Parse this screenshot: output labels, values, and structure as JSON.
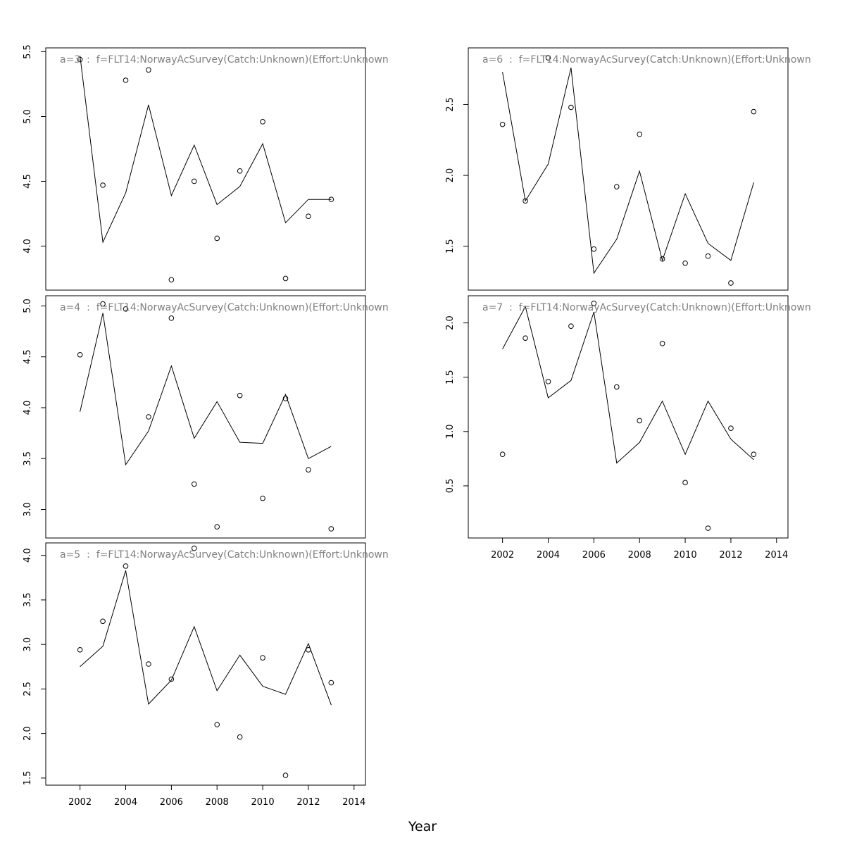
{
  "xlabel": "Year",
  "chart_data": [
    {
      "type": "line",
      "title": "a=3  :  f=FLT14:NorwayAcSurvey(Catch:Unknown)(Effort:Unknown",
      "xlim": [
        2000.5,
        2014.5
      ],
      "ylim": [
        3.66,
        5.53
      ],
      "xticks": [
        2002,
        2004,
        2006,
        2008,
        2010,
        2012,
        2014
      ],
      "yticks": [
        4.0,
        4.5,
        5.0,
        5.5
      ],
      "show_x_axis": false,
      "x": [
        2002,
        2003,
        2004,
        2005,
        2006,
        2007,
        2008,
        2009,
        2010,
        2011,
        2012,
        2013
      ],
      "series": [
        {
          "kind": "points",
          "values": [
            5.44,
            4.47,
            5.28,
            5.36,
            3.74,
            4.5,
            4.06,
            4.58,
            4.96,
            3.75,
            4.23,
            4.36
          ]
        },
        {
          "kind": "line",
          "values": [
            5.47,
            4.03,
            4.41,
            5.09,
            4.39,
            4.78,
            4.32,
            4.46,
            4.79,
            4.18,
            4.36,
            4.36
          ]
        }
      ]
    },
    {
      "type": "line",
      "title": "a=4  :  f=FLT14:NorwayAcSurvey(Catch:Unknown)(Effort:Unknown",
      "xlim": [
        2000.5,
        2014.5
      ],
      "ylim": [
        2.72,
        5.1
      ],
      "xticks": [
        2002,
        2004,
        2006,
        2008,
        2010,
        2012,
        2014
      ],
      "yticks": [
        3.0,
        3.5,
        4.0,
        4.5,
        5.0
      ],
      "show_x_axis": false,
      "x": [
        2002,
        2003,
        2004,
        2005,
        2006,
        2007,
        2008,
        2009,
        2010,
        2011,
        2012,
        2013
      ],
      "series": [
        {
          "kind": "points",
          "values": [
            4.52,
            5.02,
            4.97,
            3.91,
            4.88,
            3.25,
            2.83,
            4.12,
            3.11,
            4.09,
            3.39,
            2.81
          ]
        },
        {
          "kind": "line",
          "values": [
            3.96,
            4.93,
            3.44,
            3.77,
            4.41,
            3.7,
            4.06,
            3.66,
            3.65,
            4.13,
            3.5,
            3.62
          ]
        }
      ]
    },
    {
      "type": "line",
      "title": "a=5  :  f=FLT14:NorwayAcSurvey(Catch:Unknown)(Effort:Unknown",
      "xlim": [
        2000.5,
        2014.5
      ],
      "ylim": [
        1.42,
        4.14
      ],
      "xticks": [
        2002,
        2004,
        2006,
        2008,
        2010,
        2012,
        2014
      ],
      "yticks": [
        1.5,
        2.0,
        2.5,
        3.0,
        3.5,
        4.0
      ],
      "show_x_axis": true,
      "x": [
        2002,
        2003,
        2004,
        2005,
        2006,
        2007,
        2008,
        2009,
        2010,
        2011,
        2012,
        2013
      ],
      "series": [
        {
          "kind": "points",
          "values": [
            2.94,
            3.26,
            3.88,
            2.78,
            2.61,
            4.08,
            2.1,
            1.96,
            2.85,
            1.53,
            2.94,
            2.57
          ]
        },
        {
          "kind": "line",
          "values": [
            2.75,
            2.98,
            3.83,
            2.33,
            2.6,
            3.2,
            2.48,
            2.88,
            2.53,
            2.44,
            3.01,
            2.32
          ]
        }
      ]
    },
    {
      "type": "line",
      "title": "a=6  :  f=FLT14:NorwayAcSurvey(Catch:Unknown)(Effort:Unknown",
      "xlim": [
        2000.5,
        2014.5
      ],
      "ylim": [
        1.19,
        2.9
      ],
      "xticks": [
        2002,
        2004,
        2006,
        2008,
        2010,
        2012,
        2014
      ],
      "yticks": [
        1.5,
        2.0,
        2.5
      ],
      "show_x_axis": false,
      "x": [
        2002,
        2003,
        2004,
        2005,
        2006,
        2007,
        2008,
        2009,
        2010,
        2011,
        2012,
        2013
      ],
      "series": [
        {
          "kind": "points",
          "values": [
            2.36,
            1.82,
            2.83,
            2.48,
            1.48,
            1.92,
            2.29,
            1.41,
            1.38,
            1.43,
            1.24,
            2.45
          ]
        },
        {
          "kind": "line",
          "values": [
            2.73,
            1.82,
            2.08,
            2.76,
            1.31,
            1.55,
            2.03,
            1.4,
            1.87,
            1.52,
            1.4,
            1.95
          ]
        }
      ]
    },
    {
      "type": "line",
      "title": "a=7  :  f=FLT14:NorwayAcSurvey(Catch:Unknown)(Effort:Unknown",
      "xlim": [
        2000.5,
        2014.5
      ],
      "ylim": [
        0.02,
        2.25
      ],
      "xticks": [
        2002,
        2004,
        2006,
        2008,
        2010,
        2012,
        2014
      ],
      "yticks": [
        0.5,
        1.0,
        1.5,
        2.0
      ],
      "show_x_axis": true,
      "x": [
        2002,
        2003,
        2004,
        2005,
        2006,
        2007,
        2008,
        2009,
        2010,
        2011,
        2012,
        2013
      ],
      "series": [
        {
          "kind": "points",
          "values": [
            0.79,
            1.86,
            1.46,
            1.97,
            2.18,
            1.41,
            1.1,
            1.81,
            0.53,
            0.11,
            1.03,
            0.79
          ]
        },
        {
          "kind": "line",
          "values": [
            1.76,
            2.15,
            1.31,
            1.47,
            2.1,
            0.71,
            0.9,
            1.28,
            0.79,
            1.28,
            0.93,
            0.74
          ]
        }
      ]
    }
  ]
}
